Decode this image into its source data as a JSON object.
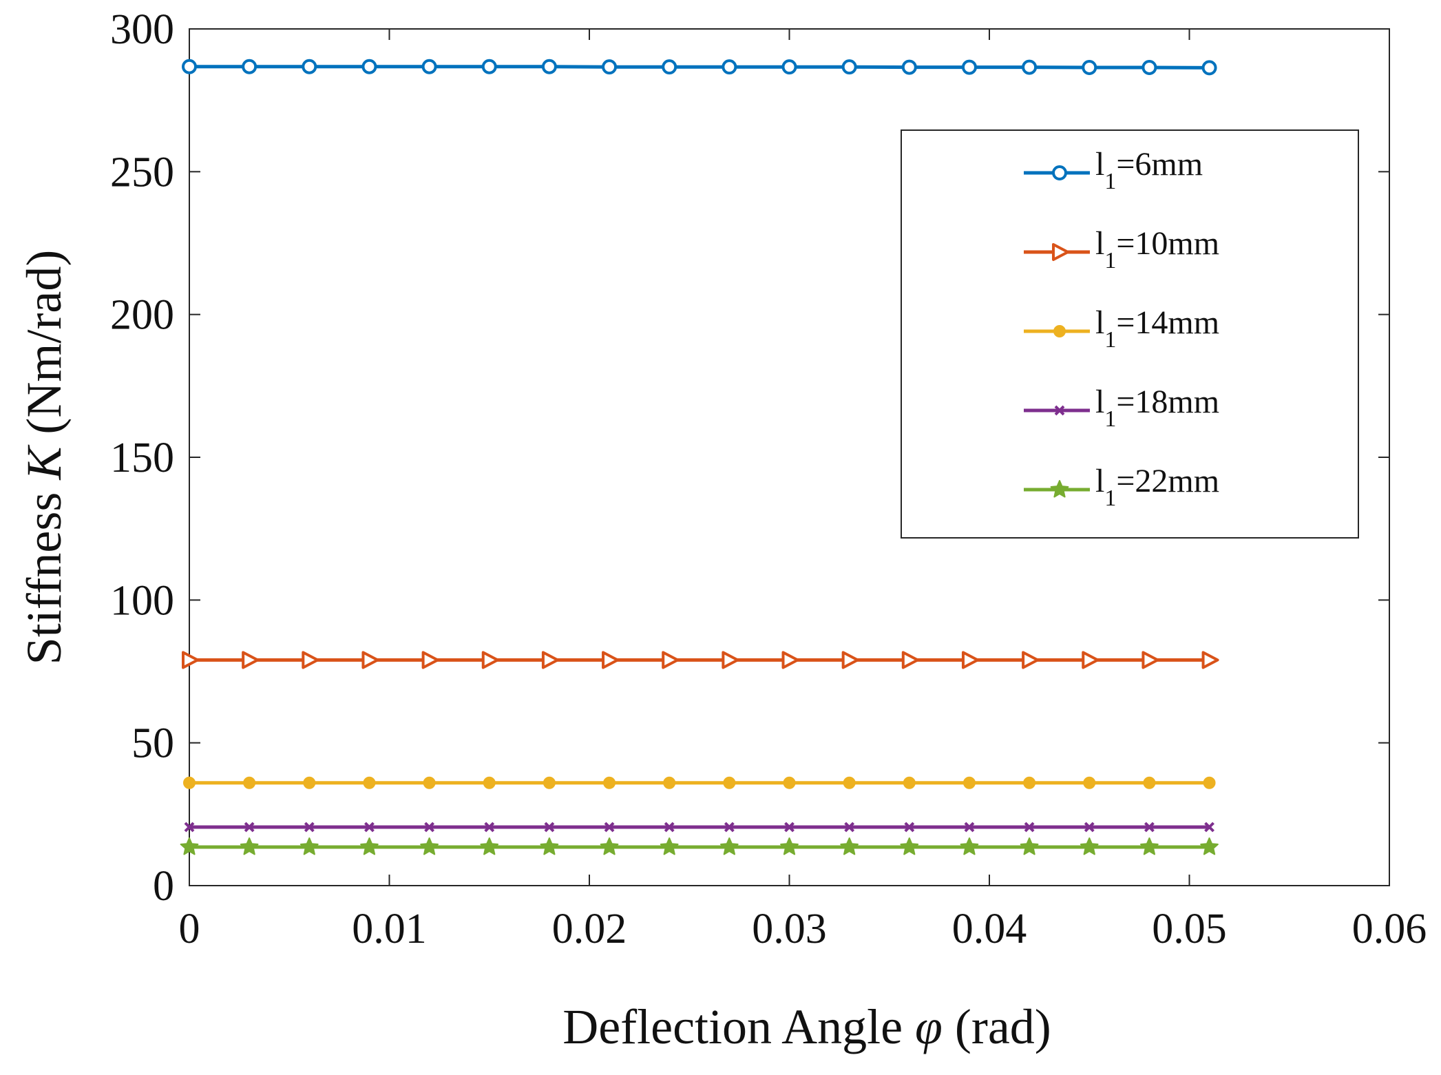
{
  "chart_data": {
    "type": "line",
    "title": "",
    "xlabel": "Deflection Angle φ (rad)",
    "xlabel_parts": {
      "prefix": "Deflection Angle ",
      "symbol": "φ",
      "suffix": " (rad)"
    },
    "ylabel": "Stiffness K (Nm/rad)",
    "ylabel_parts": {
      "prefix": "Stiffness ",
      "symbol": "K",
      "suffix": " (Nm/rad)"
    },
    "xlim": [
      0,
      0.06
    ],
    "ylim": [
      0,
      300
    ],
    "xticks": [
      0,
      0.01,
      0.02,
      0.03,
      0.04,
      0.05,
      0.06
    ],
    "xtick_labels": [
      "0",
      "0.01",
      "0.02",
      "0.03",
      "0.04",
      "0.05",
      "0.06"
    ],
    "yticks": [
      0,
      50,
      100,
      150,
      200,
      250,
      300
    ],
    "ytick_labels": [
      "0",
      "50",
      "100",
      "150",
      "200",
      "250",
      "300"
    ],
    "grid": false,
    "legend_position": "top-right",
    "x": [
      0,
      0.003,
      0.006,
      0.009,
      0.012,
      0.015,
      0.018,
      0.021,
      0.024,
      0.027,
      0.03,
      0.033,
      0.036,
      0.039,
      0.042,
      0.045,
      0.048,
      0.051
    ],
    "series": [
      {
        "name": "l1=6mm",
        "label_base": "l",
        "label_sub": "1",
        "label_rest": "=6mm",
        "color": "#0072BD",
        "marker": "circle",
        "values": [
          286.8,
          286.8,
          286.8,
          286.8,
          286.8,
          286.8,
          286.8,
          286.7,
          286.7,
          286.7,
          286.7,
          286.7,
          286.6,
          286.6,
          286.6,
          286.5,
          286.5,
          286.4
        ]
      },
      {
        "name": "l1=10mm",
        "label_base": "l",
        "label_sub": "1",
        "label_rest": "=10mm",
        "color": "#D95319",
        "marker": "triangle-right",
        "values": [
          79,
          79,
          79,
          79,
          79,
          79,
          79,
          79,
          79,
          79,
          79,
          79,
          79,
          79,
          79,
          79,
          79,
          79
        ]
      },
      {
        "name": "l1=14mm",
        "label_base": "l",
        "label_sub": "1",
        "label_rest": "=14mm",
        "color": "#EDB120",
        "marker": "dot",
        "values": [
          36,
          36,
          36,
          36,
          36,
          36,
          36,
          36,
          36,
          36,
          36,
          36,
          36,
          36,
          36,
          36,
          36,
          36
        ]
      },
      {
        "name": "l1=18mm",
        "label_base": "l",
        "label_sub": "1",
        "label_rest": "=18mm",
        "color": "#7E2F8E",
        "marker": "x",
        "values": [
          20.5,
          20.5,
          20.5,
          20.5,
          20.5,
          20.5,
          20.5,
          20.5,
          20.5,
          20.5,
          20.5,
          20.5,
          20.5,
          20.5,
          20.5,
          20.5,
          20.5,
          20.5
        ]
      },
      {
        "name": "l1=22mm",
        "label_base": "l",
        "label_sub": "1",
        "label_rest": "=22mm",
        "color": "#77AC30",
        "marker": "star",
        "values": [
          13.5,
          13.5,
          13.5,
          13.5,
          13.5,
          13.5,
          13.5,
          13.5,
          13.5,
          13.5,
          13.5,
          13.5,
          13.5,
          13.5,
          13.5,
          13.5,
          13.5,
          13.5
        ]
      }
    ]
  }
}
